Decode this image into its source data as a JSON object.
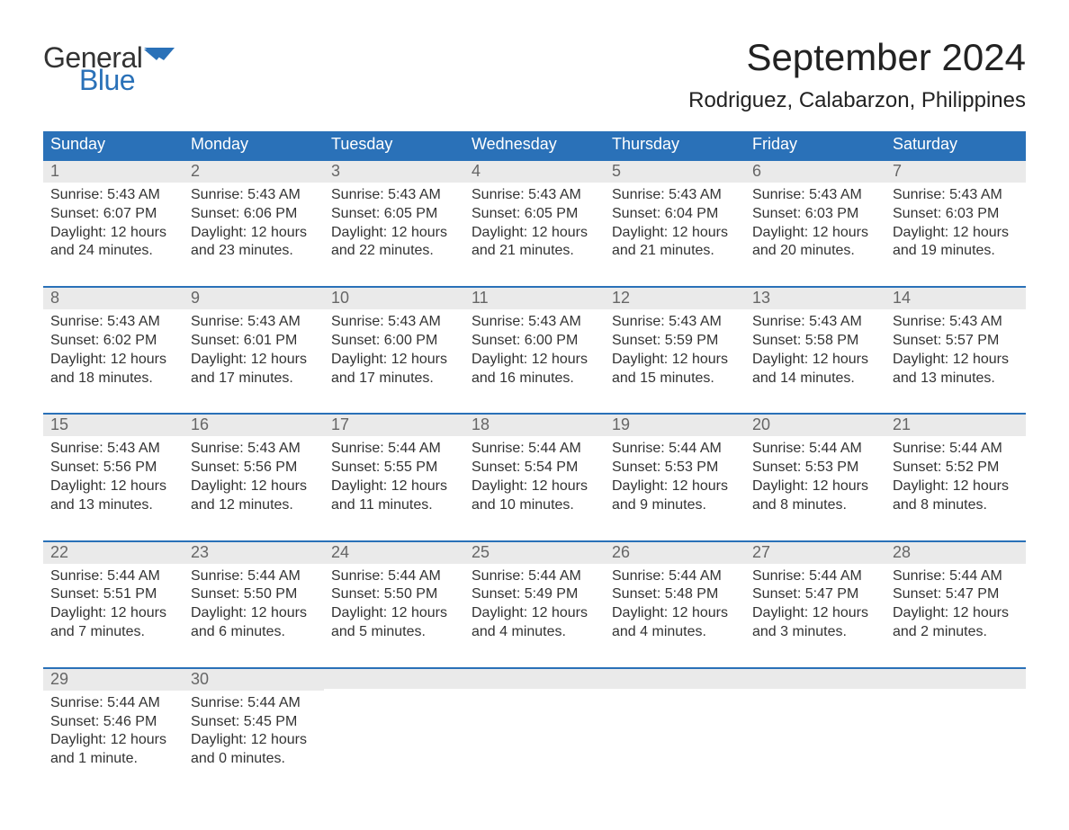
{
  "brand": {
    "text1": "General",
    "text2": "Blue",
    "color_text1": "#333333",
    "color_text2": "#2a71b8",
    "flag_color": "#2a71b8"
  },
  "title": "September 2024",
  "location": "Rodriguez, Calabarzon, Philippines",
  "colors": {
    "header_bg": "#2a71b8",
    "header_text": "#ffffff",
    "daynum_bg": "#eaeaea",
    "daynum_text": "#666666",
    "body_text": "#333333",
    "week_border": "#2a71b8",
    "page_bg": "#ffffff"
  },
  "typography": {
    "month_title_fontsize": 42,
    "location_fontsize": 24,
    "dow_fontsize": 18,
    "daynum_fontsize": 18,
    "body_fontsize": 16
  },
  "days_of_week": [
    "Sunday",
    "Monday",
    "Tuesday",
    "Wednesday",
    "Thursday",
    "Friday",
    "Saturday"
  ],
  "weeks": [
    [
      {
        "num": "1",
        "sunrise": "Sunrise: 5:43 AM",
        "sunset": "Sunset: 6:07 PM",
        "dl1": "Daylight: 12 hours",
        "dl2": "and 24 minutes."
      },
      {
        "num": "2",
        "sunrise": "Sunrise: 5:43 AM",
        "sunset": "Sunset: 6:06 PM",
        "dl1": "Daylight: 12 hours",
        "dl2": "and 23 minutes."
      },
      {
        "num": "3",
        "sunrise": "Sunrise: 5:43 AM",
        "sunset": "Sunset: 6:05 PM",
        "dl1": "Daylight: 12 hours",
        "dl2": "and 22 minutes."
      },
      {
        "num": "4",
        "sunrise": "Sunrise: 5:43 AM",
        "sunset": "Sunset: 6:05 PM",
        "dl1": "Daylight: 12 hours",
        "dl2": "and 21 minutes."
      },
      {
        "num": "5",
        "sunrise": "Sunrise: 5:43 AM",
        "sunset": "Sunset: 6:04 PM",
        "dl1": "Daylight: 12 hours",
        "dl2": "and 21 minutes."
      },
      {
        "num": "6",
        "sunrise": "Sunrise: 5:43 AM",
        "sunset": "Sunset: 6:03 PM",
        "dl1": "Daylight: 12 hours",
        "dl2": "and 20 minutes."
      },
      {
        "num": "7",
        "sunrise": "Sunrise: 5:43 AM",
        "sunset": "Sunset: 6:03 PM",
        "dl1": "Daylight: 12 hours",
        "dl2": "and 19 minutes."
      }
    ],
    [
      {
        "num": "8",
        "sunrise": "Sunrise: 5:43 AM",
        "sunset": "Sunset: 6:02 PM",
        "dl1": "Daylight: 12 hours",
        "dl2": "and 18 minutes."
      },
      {
        "num": "9",
        "sunrise": "Sunrise: 5:43 AM",
        "sunset": "Sunset: 6:01 PM",
        "dl1": "Daylight: 12 hours",
        "dl2": "and 17 minutes."
      },
      {
        "num": "10",
        "sunrise": "Sunrise: 5:43 AM",
        "sunset": "Sunset: 6:00 PM",
        "dl1": "Daylight: 12 hours",
        "dl2": "and 17 minutes."
      },
      {
        "num": "11",
        "sunrise": "Sunrise: 5:43 AM",
        "sunset": "Sunset: 6:00 PM",
        "dl1": "Daylight: 12 hours",
        "dl2": "and 16 minutes."
      },
      {
        "num": "12",
        "sunrise": "Sunrise: 5:43 AM",
        "sunset": "Sunset: 5:59 PM",
        "dl1": "Daylight: 12 hours",
        "dl2": "and 15 minutes."
      },
      {
        "num": "13",
        "sunrise": "Sunrise: 5:43 AM",
        "sunset": "Sunset: 5:58 PM",
        "dl1": "Daylight: 12 hours",
        "dl2": "and 14 minutes."
      },
      {
        "num": "14",
        "sunrise": "Sunrise: 5:43 AM",
        "sunset": "Sunset: 5:57 PM",
        "dl1": "Daylight: 12 hours",
        "dl2": "and 13 minutes."
      }
    ],
    [
      {
        "num": "15",
        "sunrise": "Sunrise: 5:43 AM",
        "sunset": "Sunset: 5:56 PM",
        "dl1": "Daylight: 12 hours",
        "dl2": "and 13 minutes."
      },
      {
        "num": "16",
        "sunrise": "Sunrise: 5:43 AM",
        "sunset": "Sunset: 5:56 PM",
        "dl1": "Daylight: 12 hours",
        "dl2": "and 12 minutes."
      },
      {
        "num": "17",
        "sunrise": "Sunrise: 5:44 AM",
        "sunset": "Sunset: 5:55 PM",
        "dl1": "Daylight: 12 hours",
        "dl2": "and 11 minutes."
      },
      {
        "num": "18",
        "sunrise": "Sunrise: 5:44 AM",
        "sunset": "Sunset: 5:54 PM",
        "dl1": "Daylight: 12 hours",
        "dl2": "and 10 minutes."
      },
      {
        "num": "19",
        "sunrise": "Sunrise: 5:44 AM",
        "sunset": "Sunset: 5:53 PM",
        "dl1": "Daylight: 12 hours",
        "dl2": "and 9 minutes."
      },
      {
        "num": "20",
        "sunrise": "Sunrise: 5:44 AM",
        "sunset": "Sunset: 5:53 PM",
        "dl1": "Daylight: 12 hours",
        "dl2": "and 8 minutes."
      },
      {
        "num": "21",
        "sunrise": "Sunrise: 5:44 AM",
        "sunset": "Sunset: 5:52 PM",
        "dl1": "Daylight: 12 hours",
        "dl2": "and 8 minutes."
      }
    ],
    [
      {
        "num": "22",
        "sunrise": "Sunrise: 5:44 AM",
        "sunset": "Sunset: 5:51 PM",
        "dl1": "Daylight: 12 hours",
        "dl2": "and 7 minutes."
      },
      {
        "num": "23",
        "sunrise": "Sunrise: 5:44 AM",
        "sunset": "Sunset: 5:50 PM",
        "dl1": "Daylight: 12 hours",
        "dl2": "and 6 minutes."
      },
      {
        "num": "24",
        "sunrise": "Sunrise: 5:44 AM",
        "sunset": "Sunset: 5:50 PM",
        "dl1": "Daylight: 12 hours",
        "dl2": "and 5 minutes."
      },
      {
        "num": "25",
        "sunrise": "Sunrise: 5:44 AM",
        "sunset": "Sunset: 5:49 PM",
        "dl1": "Daylight: 12 hours",
        "dl2": "and 4 minutes."
      },
      {
        "num": "26",
        "sunrise": "Sunrise: 5:44 AM",
        "sunset": "Sunset: 5:48 PM",
        "dl1": "Daylight: 12 hours",
        "dl2": "and 4 minutes."
      },
      {
        "num": "27",
        "sunrise": "Sunrise: 5:44 AM",
        "sunset": "Sunset: 5:47 PM",
        "dl1": "Daylight: 12 hours",
        "dl2": "and 3 minutes."
      },
      {
        "num": "28",
        "sunrise": "Sunrise: 5:44 AM",
        "sunset": "Sunset: 5:47 PM",
        "dl1": "Daylight: 12 hours",
        "dl2": "and 2 minutes."
      }
    ],
    [
      {
        "num": "29",
        "sunrise": "Sunrise: 5:44 AM",
        "sunset": "Sunset: 5:46 PM",
        "dl1": "Daylight: 12 hours",
        "dl2": "and 1 minute."
      },
      {
        "num": "30",
        "sunrise": "Sunrise: 5:44 AM",
        "sunset": "Sunset: 5:45 PM",
        "dl1": "Daylight: 12 hours",
        "dl2": "and 0 minutes."
      },
      null,
      null,
      null,
      null,
      null
    ]
  ]
}
